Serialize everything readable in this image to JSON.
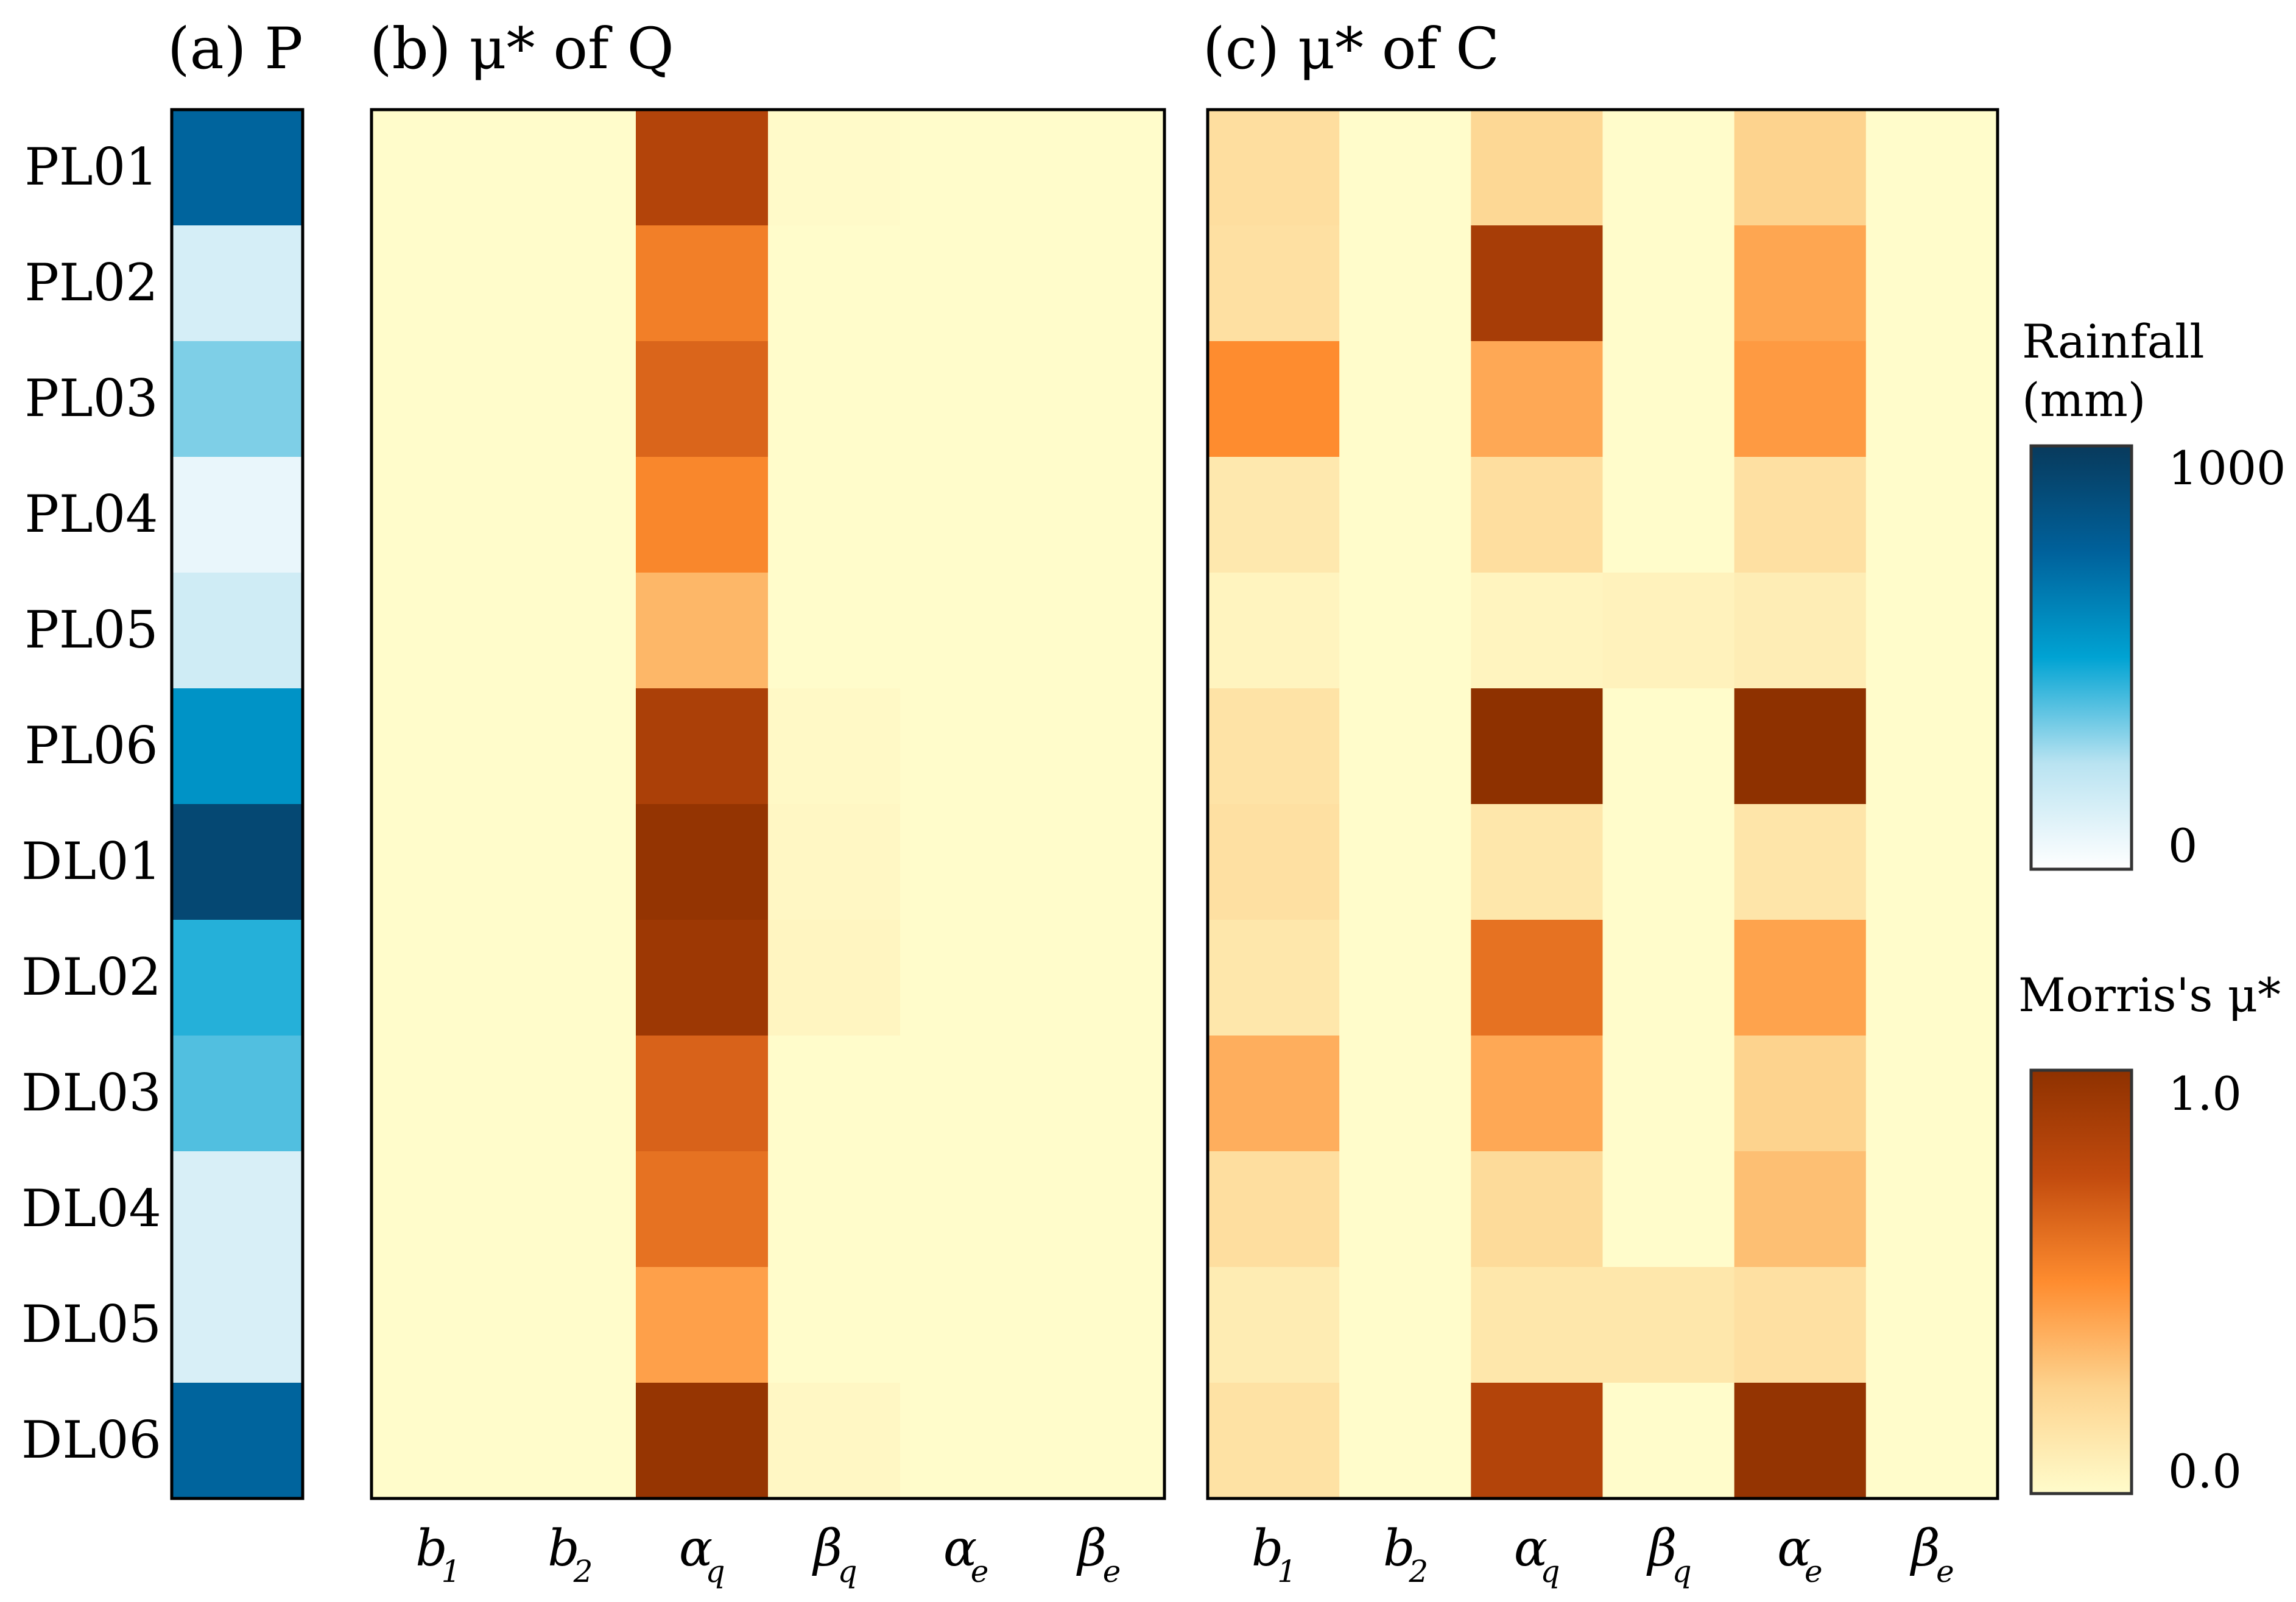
{
  "chart_data": [
    {
      "type": "heatmap",
      "title": "(a) P",
      "rows": [
        "PL01",
        "PL02",
        "PL03",
        "PL04",
        "PL05",
        "PL06",
        "DL01",
        "DL02",
        "DL03",
        "DL04",
        "DL05",
        "DL06"
      ],
      "columns": [],
      "values": [
        [
          740
        ],
        [
          150
        ],
        [
          330
        ],
        [
          80
        ],
        [
          170
        ],
        [
          560
        ],
        [
          910
        ],
        [
          450
        ],
        [
          390
        ],
        [
          140
        ],
        [
          140
        ],
        [
          740
        ]
      ],
      "colorbar": {
        "title_line1": "Rainfall",
        "title_line2": "(mm)",
        "min_label": "0",
        "max_label": "1000",
        "range": [
          0,
          1000
        ]
      }
    },
    {
      "type": "heatmap",
      "title": "(b) μ* of Q",
      "rows": [
        "PL01",
        "PL02",
        "PL03",
        "PL04",
        "PL05",
        "PL06",
        "DL01",
        "DL02",
        "DL03",
        "DL04",
        "DL05",
        "DL06"
      ],
      "columns": [
        {
          "base": "b",
          "sub": "1"
        },
        {
          "base": "b",
          "sub": "2"
        },
        {
          "base": "α",
          "sub": "q"
        },
        {
          "base": "β",
          "sub": "q"
        },
        {
          "base": "α",
          "sub": "e"
        },
        {
          "base": "β",
          "sub": "e"
        }
      ],
      "values": [
        [
          0.0,
          0.0,
          0.82,
          0.01,
          0.0,
          0.0
        ],
        [
          0.0,
          0.0,
          0.55,
          0.0,
          0.0,
          0.0
        ],
        [
          0.0,
          0.0,
          0.65,
          0.0,
          0.0,
          0.0
        ],
        [
          0.0,
          0.0,
          0.52,
          0.0,
          0.0,
          0.0
        ],
        [
          0.0,
          0.0,
          0.35,
          0.0,
          0.0,
          0.0
        ],
        [
          0.0,
          0.0,
          0.86,
          0.02,
          0.0,
          0.0
        ],
        [
          0.0,
          0.0,
          0.97,
          0.03,
          0.0,
          0.0
        ],
        [
          0.0,
          0.0,
          0.93,
          0.04,
          0.0,
          0.0
        ],
        [
          0.0,
          0.0,
          0.66,
          0.0,
          0.0,
          0.0
        ],
        [
          0.0,
          0.0,
          0.6,
          0.0,
          0.0,
          0.0
        ],
        [
          0.0,
          0.0,
          0.43,
          0.0,
          0.0,
          0.0
        ],
        [
          0.0,
          0.0,
          0.96,
          0.03,
          0.0,
          0.0
        ]
      ]
    },
    {
      "type": "heatmap",
      "title": "(c) μ* of C",
      "rows": [
        "PL01",
        "PL02",
        "PL03",
        "PL04",
        "PL05",
        "PL06",
        "DL01",
        "DL02",
        "DL03",
        "DL04",
        "DL05",
        "DL06"
      ],
      "columns": [
        {
          "base": "b",
          "sub": "1"
        },
        {
          "base": "b",
          "sub": "2"
        },
        {
          "base": "α",
          "sub": "q"
        },
        {
          "base": "β",
          "sub": "q"
        },
        {
          "base": "α",
          "sub": "e"
        },
        {
          "base": "β",
          "sub": "e"
        }
      ],
      "values": [
        [
          0.18,
          0.0,
          0.22,
          0.0,
          0.25,
          0.0
        ],
        [
          0.17,
          0.0,
          0.88,
          0.0,
          0.41,
          0.0
        ],
        [
          0.5,
          0.0,
          0.4,
          0.0,
          0.45,
          0.0
        ],
        [
          0.12,
          0.0,
          0.18,
          0.0,
          0.17,
          0.0
        ],
        [
          0.05,
          0.0,
          0.05,
          0.06,
          0.09,
          0.0
        ],
        [
          0.15,
          0.0,
          1.0,
          0.0,
          1.0,
          0.0
        ],
        [
          0.17,
          0.0,
          0.13,
          0.0,
          0.14,
          0.0
        ],
        [
          0.13,
          0.0,
          0.6,
          0.0,
          0.42,
          0.0
        ],
        [
          0.38,
          0.0,
          0.4,
          0.0,
          0.25,
          0.0
        ],
        [
          0.18,
          0.0,
          0.2,
          0.0,
          0.32,
          0.0
        ],
        [
          0.1,
          0.0,
          0.13,
          0.13,
          0.17,
          0.0
        ],
        [
          0.16,
          0.0,
          0.82,
          0.0,
          0.97,
          0.0
        ]
      ],
      "colorbar": {
        "title": "Morris's μ*",
        "min_label": "0.0",
        "max_label": "1.0",
        "range": [
          0,
          1
        ]
      }
    }
  ],
  "colors": {
    "blue_ramp": [
      "#ffffff",
      "#b9e3f1",
      "#00a3d3",
      "#00619b",
      "#083a5c"
    ],
    "orange_ramp": [
      "#fffccb",
      "#fdd38e",
      "#fe8c2f",
      "#c24b0e",
      "#8e3100"
    ]
  }
}
